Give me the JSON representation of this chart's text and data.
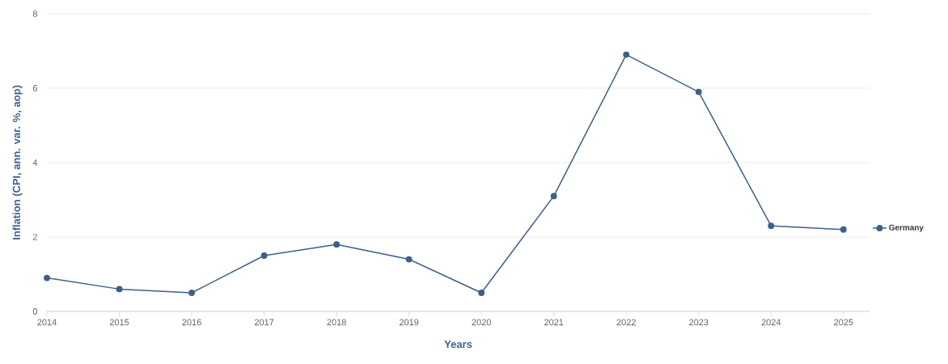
{
  "chart_data": {
    "type": "line",
    "xlabel": "Years",
    "ylabel": "Inflation (CPI, ann. var. %, aop)",
    "categories": [
      "2014",
      "2015",
      "2016",
      "2017",
      "2018",
      "2019",
      "2020",
      "2021",
      "2022",
      "2023",
      "2024",
      "2025"
    ],
    "series": [
      {
        "name": "Germany",
        "color": "#3d5f8c",
        "values": [
          0.9,
          0.6,
          0.5,
          1.5,
          1.8,
          1.4,
          0.5,
          3.1,
          6.9,
          5.9,
          2.3,
          2.2
        ]
      }
    ],
    "ylim": [
      0,
      8
    ],
    "yticks": [
      0,
      2,
      4,
      6,
      8
    ],
    "grid": "y",
    "legend": "right",
    "marker": "circle",
    "line_style": "solid"
  }
}
